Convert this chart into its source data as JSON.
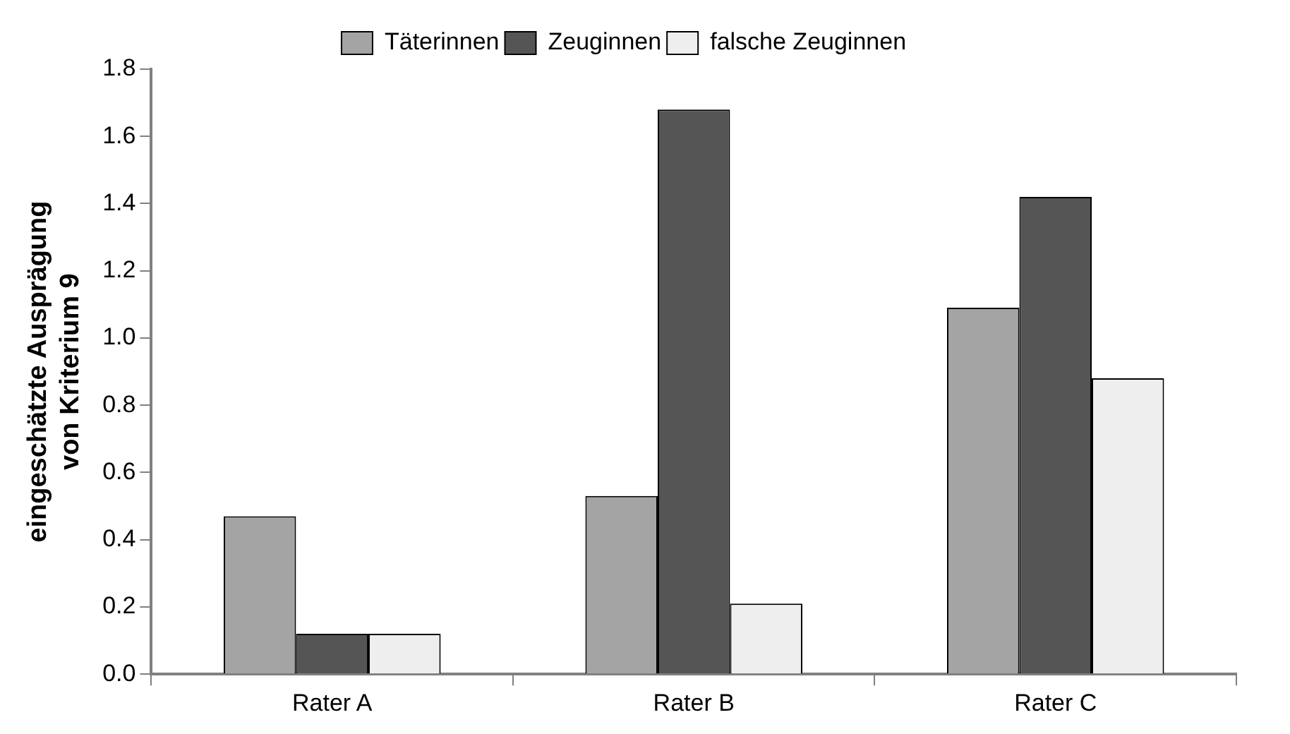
{
  "chart_data": {
    "type": "bar",
    "ylabel": "eingeschätzte Ausprägung\nvon Kriterium 9",
    "categories": [
      "Rater A",
      "Rater B",
      "Rater C"
    ],
    "series": [
      {
        "name": "Täterinnen",
        "color": "#a4a4a4",
        "values": [
          0.47,
          0.53,
          1.09
        ]
      },
      {
        "name": "Zeuginnen",
        "color": "#555555",
        "values": [
          0.12,
          1.68,
          1.42
        ]
      },
      {
        "name": "falsche Zeuginnen",
        "color": "#eeeeee",
        "values": [
          0.12,
          0.21,
          0.88
        ]
      }
    ],
    "ylim": [
      0,
      1.8
    ],
    "yticks": [
      {
        "value": 0,
        "label": "0.0"
      },
      0.2,
      0.4,
      0.6,
      0.8,
      {
        "value": 1,
        "label": "1.0"
      },
      1.2,
      1.4,
      1.6,
      1.8
    ],
    "grid": false,
    "legend": "top"
  }
}
